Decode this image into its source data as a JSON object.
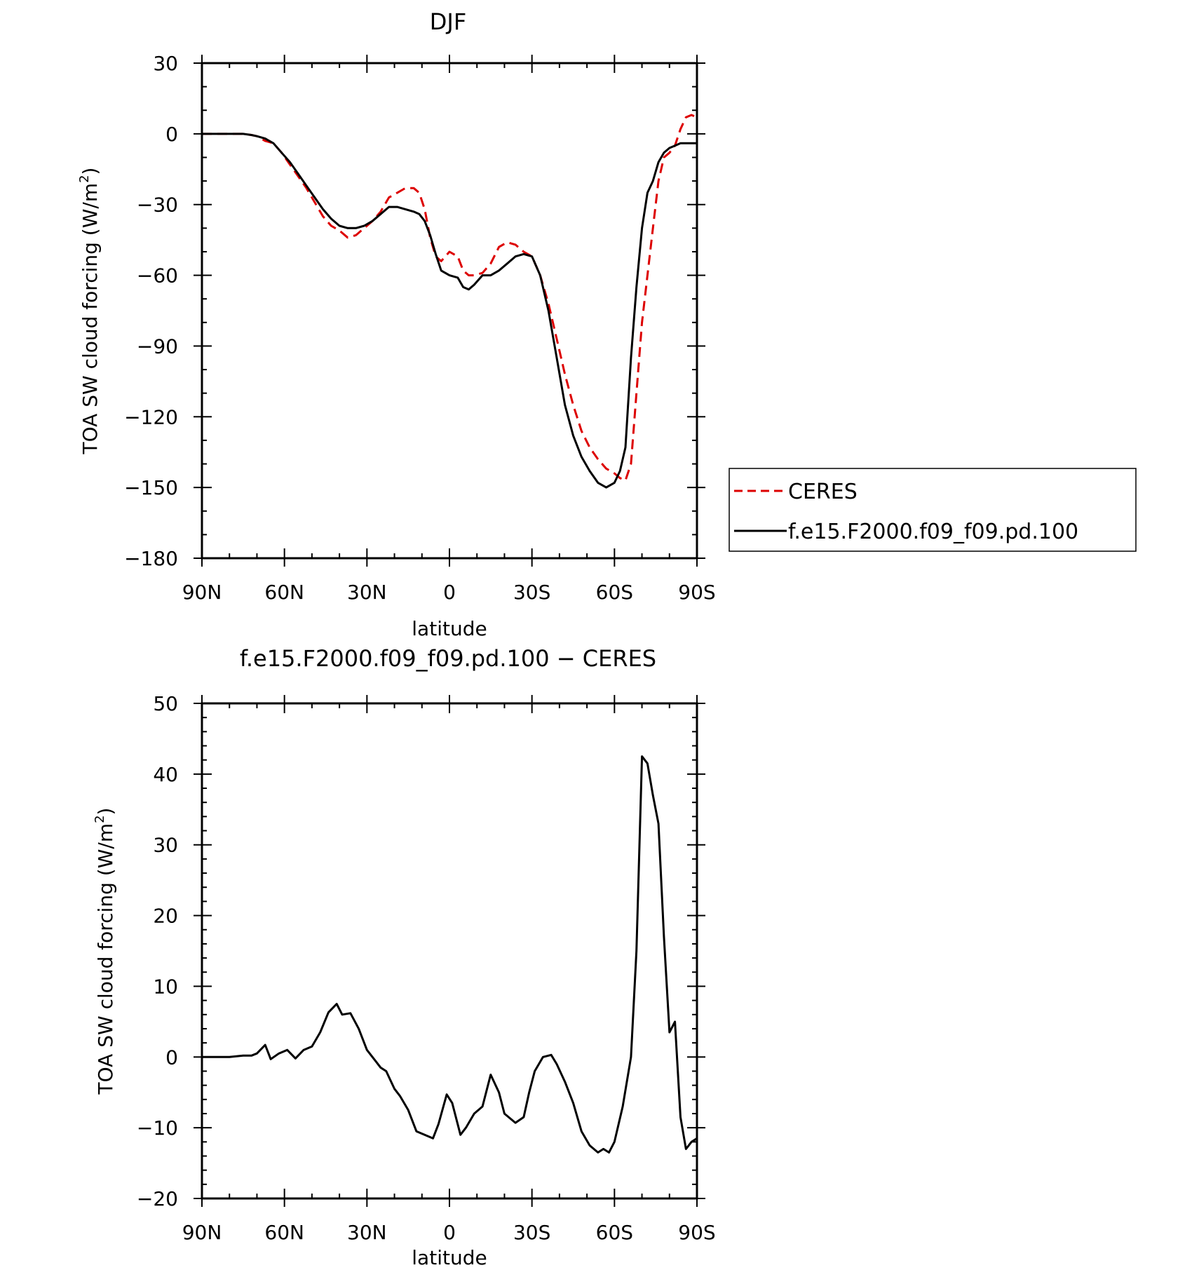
{
  "chart_data": [
    {
      "type": "line",
      "title": "DJF",
      "xlabel": "latitude",
      "ylabel": "TOA SW cloud forcing (W/m²)",
      "ylabel_main": "TOA SW cloud forcing (W/m",
      "ylabel_sup": "2",
      "ylabel_end": ")",
      "xlim": [
        90,
        -90
      ],
      "ylim": [
        -180,
        30
      ],
      "x_tick_values": [
        90,
        60,
        30,
        0,
        -30,
        -60,
        -90
      ],
      "x_tick_labels": [
        "90N",
        "60N",
        "30N",
        "0",
        "30S",
        "60S",
        "90S"
      ],
      "y_tick_values": [
        30,
        0,
        -30,
        -60,
        -90,
        -120,
        -150,
        -180
      ],
      "y_tick_labels": [
        "30",
        "0",
        "−30",
        "−60",
        "−90",
        "−120",
        "−150",
        "−180"
      ],
      "legend": {
        "placement": "right of plot",
        "entries": [
          "CERES",
          "f.e15.F2000.f09_f09.pd.100"
        ]
      },
      "series": [
        {
          "name": "CERES",
          "color": "#dd0000",
          "style": "dashed",
          "x": [
            90,
            85,
            80,
            75,
            72,
            70,
            67,
            64,
            61,
            58,
            55,
            52,
            49,
            46,
            43,
            40,
            37,
            34,
            31,
            28,
            25,
            22,
            19,
            16,
            13,
            11,
            9,
            7,
            5,
            3,
            0,
            -3,
            -5,
            -7,
            -9,
            -12,
            -15,
            -18,
            -21,
            -24,
            -27,
            -30,
            -33,
            -36,
            -39,
            -42,
            -45,
            -48,
            -51,
            -54,
            -57,
            -60,
            -62,
            -64,
            -66,
            -68,
            -70,
            -72,
            -74,
            -76,
            -78,
            -80,
            -82,
            -84,
            -86,
            -88,
            -90
          ],
          "y": [
            0,
            0,
            0,
            0,
            -0.5,
            -1,
            -3,
            -4,
            -8,
            -13,
            -18,
            -23,
            -29,
            -35,
            -39,
            -41,
            -44,
            -43,
            -40,
            -37,
            -33,
            -27,
            -25,
            -23,
            -23,
            -25,
            -32,
            -44,
            -52,
            -54,
            -50,
            -52,
            -58,
            -60,
            -60,
            -59,
            -55,
            -48,
            -46,
            -47,
            -50,
            -52,
            -60,
            -72,
            -87,
            -102,
            -115,
            -126,
            -133,
            -138,
            -142,
            -144,
            -146,
            -147,
            -140,
            -110,
            -80,
            -60,
            -40,
            -20,
            -10,
            -8,
            -5,
            2,
            7,
            8,
            7
          ]
        },
        {
          "name": "f.e15.F2000.f09_f09.pd.100",
          "color": "#000000",
          "style": "solid",
          "x": [
            90,
            85,
            80,
            75,
            72,
            70,
            67,
            64,
            61,
            58,
            55,
            52,
            49,
            46,
            43,
            40,
            37,
            34,
            31,
            28,
            25,
            22,
            19,
            16,
            13,
            11,
            9,
            7,
            5,
            3,
            0,
            -3,
            -5,
            -7,
            -9,
            -12,
            -15,
            -18,
            -21,
            -24,
            -27,
            -30,
            -33,
            -36,
            -39,
            -42,
            -45,
            -48,
            -51,
            -54,
            -57,
            -60,
            -62,
            -64,
            -66,
            -68,
            -70,
            -72,
            -74,
            -76,
            -78,
            -80,
            -82,
            -84,
            -86,
            -88,
            -90
          ],
          "y": [
            0,
            0,
            0,
            0,
            -0.5,
            -1,
            -2,
            -4,
            -8,
            -12,
            -17,
            -22,
            -27,
            -32,
            -36,
            -39,
            -40,
            -40,
            -39,
            -37,
            -34,
            -31,
            -31,
            -32,
            -33,
            -34,
            -37,
            -43,
            -51,
            -58,
            -60,
            -61,
            -65,
            -66,
            -64,
            -60,
            -60,
            -58,
            -55,
            -52,
            -51,
            -52,
            -60,
            -75,
            -95,
            -115,
            -128,
            -137,
            -143,
            -148,
            -150,
            -148,
            -143,
            -133,
            -95,
            -65,
            -40,
            -25,
            -20,
            -12,
            -8,
            -6,
            -5,
            -4,
            -4,
            -4,
            -4
          ]
        }
      ]
    },
    {
      "type": "line",
      "title": "f.e15.F2000.f09_f09.pd.100 − CERES",
      "xlabel": "latitude",
      "ylabel": "TOA SW cloud forcing (W/m²)",
      "ylabel_main": "TOA SW cloud forcing (W/m",
      "ylabel_sup": "2",
      "ylabel_end": ")",
      "xlim": [
        90,
        -90
      ],
      "ylim": [
        -20,
        50
      ],
      "x_tick_values": [
        90,
        60,
        30,
        0,
        -30,
        -60,
        -90
      ],
      "x_tick_labels": [
        "90N",
        "60N",
        "30N",
        "0",
        "30S",
        "60S",
        "90S"
      ],
      "y_tick_values": [
        50,
        40,
        30,
        20,
        10,
        0,
        -10,
        -20
      ],
      "y_tick_labels": [
        "50",
        "40",
        "30",
        "20",
        "10",
        "0",
        "−10",
        "−20"
      ],
      "series": [
        {
          "name": "",
          "color": "#000000",
          "style": "solid",
          "x": [
            90,
            80,
            75,
            72,
            70,
            67,
            65,
            62,
            59,
            56,
            53,
            50,
            47,
            44,
            41,
            39,
            36,
            33,
            30,
            27,
            25,
            23,
            20,
            18,
            15,
            12,
            9,
            6,
            4,
            1,
            -1,
            -4,
            -6,
            -9,
            -12,
            -15,
            -18,
            -20,
            -24,
            -27,
            -29,
            -31,
            -34,
            -37,
            -39,
            -42,
            -45,
            -48,
            -51,
            -54,
            -56,
            -58,
            -60,
            -63,
            -66,
            -68,
            -70,
            -72,
            -74,
            -76,
            -78,
            -80,
            -82,
            -84,
            -86,
            -88,
            -90
          ],
          "y": [
            0,
            0,
            0.2,
            0.2,
            0.5,
            1.7,
            -0.3,
            0.5,
            1.0,
            -0.2,
            1.0,
            1.5,
            3.5,
            6.3,
            7.5,
            6.0,
            6.2,
            4.0,
            1.0,
            -0.5,
            -1.5,
            -2.0,
            -4.5,
            -5.5,
            -7.5,
            -10.5,
            -11.0,
            -11.5,
            -9.5,
            -5.3,
            -6.5,
            -11.0,
            -10.0,
            -8.0,
            -7.0,
            -2.5,
            -5.0,
            -8.0,
            -9.3,
            -8.5,
            -5.0,
            -2.0,
            0.0,
            0.3,
            -1.0,
            -3.5,
            -6.5,
            -10.5,
            -12.5,
            -13.5,
            -13.0,
            -13.5,
            -12.0,
            -7.0,
            0.0,
            15.0,
            42.5,
            41.5,
            37.0,
            33.0,
            17.0,
            3.5,
            5.0,
            -8.5,
            -13.0,
            -12.0,
            -11.5
          ]
        }
      ]
    }
  ]
}
